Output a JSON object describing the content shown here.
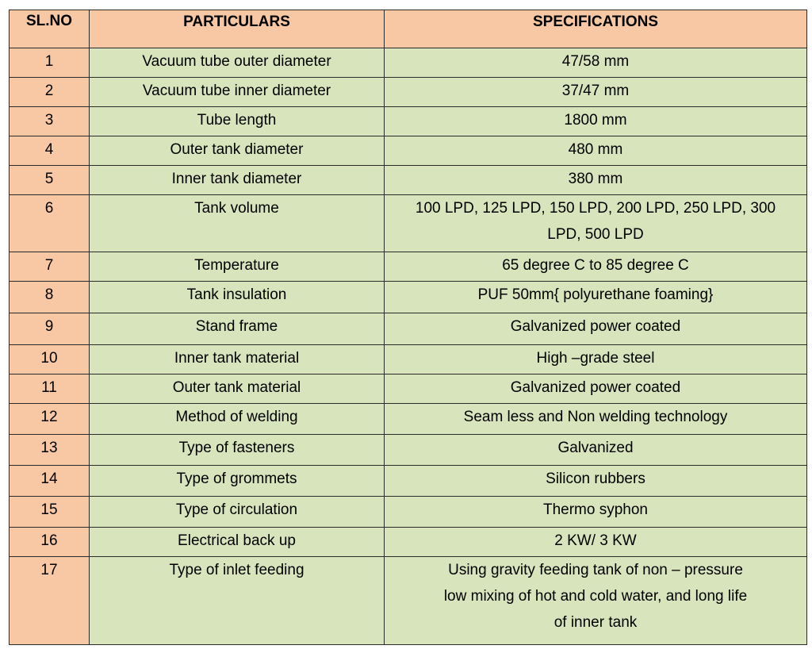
{
  "table": {
    "headers": {
      "sl": "SL.NO",
      "particulars": "PARTICULARS",
      "specifications": "SPECIFICATIONS"
    },
    "rows": [
      {
        "sl": "1",
        "particular": "Vacuum tube outer diameter",
        "spec": "47/58 mm"
      },
      {
        "sl": "2",
        "particular": "Vacuum tube inner diameter",
        "spec": "37/47 mm"
      },
      {
        "sl": "3",
        "particular": "Tube length",
        "spec": "1800 mm"
      },
      {
        "sl": "4",
        "particular": "Outer tank diameter",
        "spec": "480 mm"
      },
      {
        "sl": "5",
        "particular": "Inner tank diameter",
        "spec": "380 mm"
      },
      {
        "sl": "6",
        "particular": "Tank volume",
        "spec": "100 LPD, 125 LPD, 150 LPD, 200 LPD, 250 LPD, 300 LPD, 500 LPD"
      },
      {
        "sl": "7",
        "particular": "Temperature",
        "spec": "65 degree C to 85 degree C"
      },
      {
        "sl": "8",
        "particular": "Tank insulation",
        "spec": "PUF 50mm{ polyurethane foaming}"
      },
      {
        "sl": "9",
        "particular": "Stand frame",
        "spec": "Galvanized power coated"
      },
      {
        "sl": "10",
        "particular": "Inner tank  material",
        "spec": "High –grade steel"
      },
      {
        "sl": "11",
        "particular": "Outer tank material",
        "spec": "Galvanized power coated"
      },
      {
        "sl": "12",
        "particular": "Method of welding",
        "spec": "Seam less and Non welding technology"
      },
      {
        "sl": "13",
        "particular": "Type of fasteners",
        "spec": "Galvanized"
      },
      {
        "sl": "14",
        "particular": "Type of grommets",
        "spec": "Silicon rubbers"
      },
      {
        "sl": "15",
        "particular": "Type of circulation",
        "spec": "Thermo syphon"
      },
      {
        "sl": "16",
        "particular": "Electrical back up",
        "spec": "2 KW/ 3 KW"
      },
      {
        "sl": "17",
        "particular": "Type of inlet feeding",
        "spec": "Using gravity feeding tank of non  – pressure low mixing of hot and cold water, and long life of inner tank"
      }
    ]
  }
}
